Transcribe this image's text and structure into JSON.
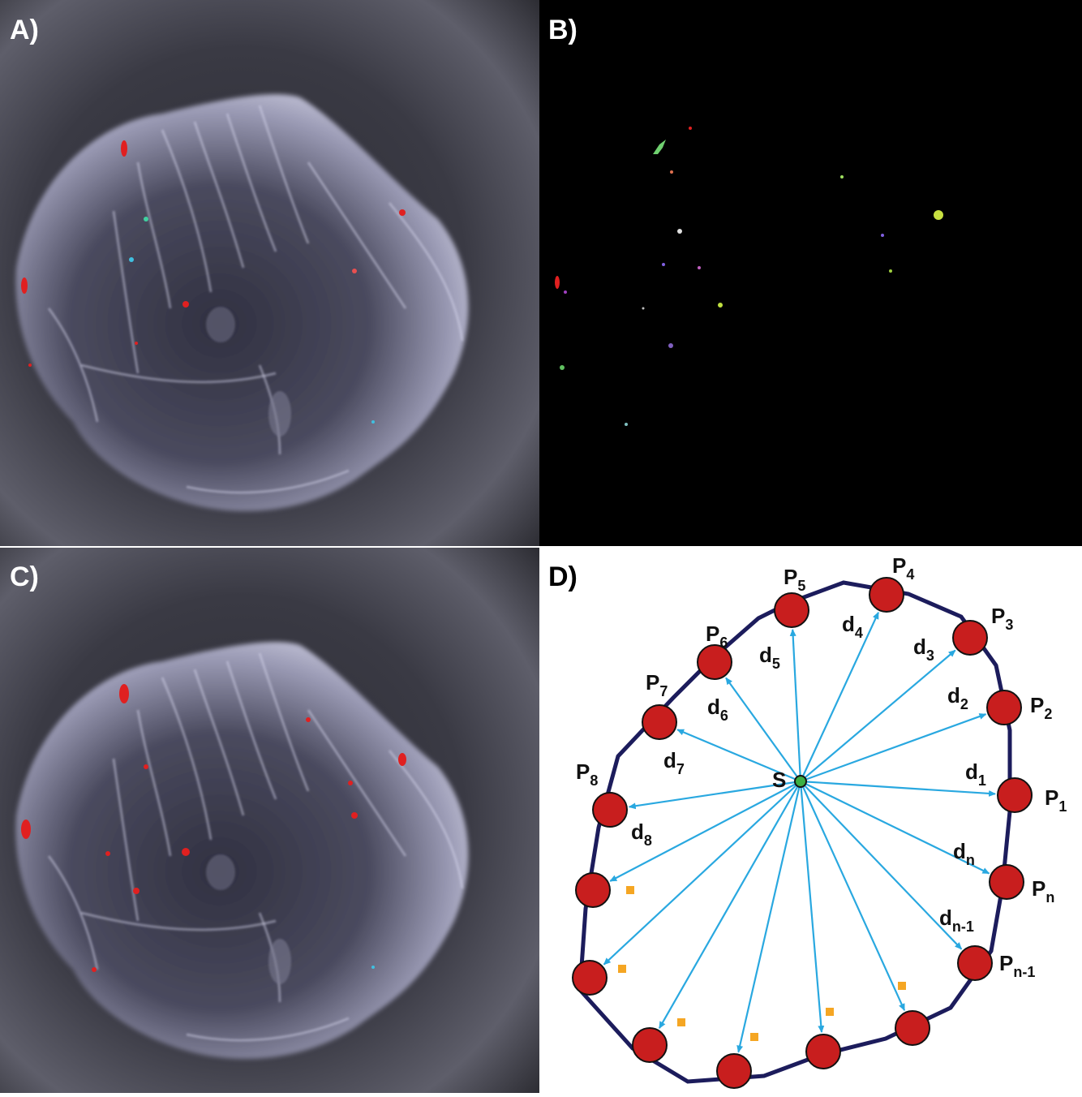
{
  "panels": [
    {
      "label": "A)"
    },
    {
      "label": "B)"
    },
    {
      "label": "C)"
    },
    {
      "label": "D)"
    }
  ],
  "diagram": {
    "center": "S",
    "points": [
      {
        "name": "P",
        "sub": "1"
      },
      {
        "name": "P",
        "sub": "2"
      },
      {
        "name": "P",
        "sub": "3"
      },
      {
        "name": "P",
        "sub": "4"
      },
      {
        "name": "P",
        "sub": "5"
      },
      {
        "name": "P",
        "sub": "6"
      },
      {
        "name": "P",
        "sub": "7"
      },
      {
        "name": "P",
        "sub": "8"
      },
      {
        "name": "P",
        "sub": "n"
      },
      {
        "name": "P",
        "sub": "n-1"
      }
    ],
    "distances": [
      {
        "name": "d",
        "sub": "1"
      },
      {
        "name": "d",
        "sub": "2"
      },
      {
        "name": "d",
        "sub": "3"
      },
      {
        "name": "d",
        "sub": "4"
      },
      {
        "name": "d",
        "sub": "5"
      },
      {
        "name": "d",
        "sub": "6"
      },
      {
        "name": "d",
        "sub": "7"
      },
      {
        "name": "d",
        "sub": "8"
      },
      {
        "name": "d",
        "sub": "n"
      },
      {
        "name": "d",
        "sub": "n-1"
      }
    ]
  }
}
